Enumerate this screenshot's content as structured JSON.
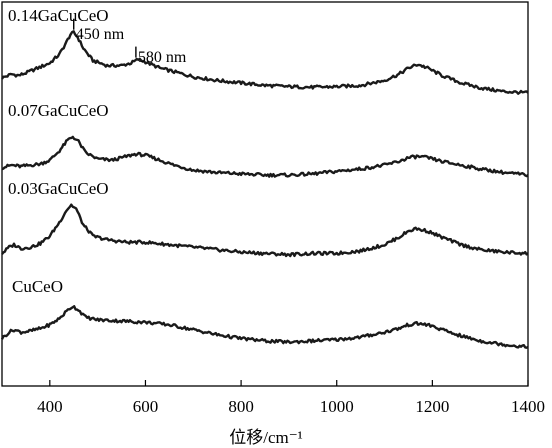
{
  "chart_data": {
    "type": "line",
    "title": "",
    "xlabel": "位移/cm⁻¹",
    "ylabel": "",
    "xlim": [
      300,
      1400
    ],
    "x_ticks": [
      400,
      600,
      800,
      1000,
      1200,
      1400
    ],
    "y_ticks_shown": false,
    "grid": false,
    "legend": "none (labels placed above each trace)",
    "colors": {
      "line": "#1a1a1a",
      "axis": "#000000"
    },
    "annotations": [
      {
        "text": "450 nm",
        "x": 450,
        "series": "0.14GaCuCeO"
      },
      {
        "text": "580 nm",
        "x": 580,
        "series": "0.14GaCuCeO"
      }
    ],
    "series": [
      {
        "name": "0.14GaCuCeO",
        "offset": 3,
        "points": [
          [
            300,
            0.42
          ],
          [
            320,
            0.48
          ],
          [
            335,
            0.46
          ],
          [
            350,
            0.5
          ],
          [
            375,
            0.58
          ],
          [
            400,
            0.66
          ],
          [
            420,
            0.8
          ],
          [
            435,
            1.0
          ],
          [
            443,
            1.12
          ],
          [
            450,
            1.15
          ],
          [
            458,
            1.08
          ],
          [
            470,
            0.9
          ],
          [
            490,
            0.7
          ],
          [
            520,
            0.62
          ],
          [
            550,
            0.62
          ],
          [
            570,
            0.66
          ],
          [
            585,
            0.72
          ],
          [
            600,
            0.68
          ],
          [
            630,
            0.58
          ],
          [
            660,
            0.52
          ],
          [
            700,
            0.44
          ],
          [
            750,
            0.38
          ],
          [
            800,
            0.34
          ],
          [
            850,
            0.3
          ],
          [
            900,
            0.28
          ],
          [
            950,
            0.27
          ],
          [
            1000,
            0.28
          ],
          [
            1050,
            0.3
          ],
          [
            1100,
            0.38
          ],
          [
            1130,
            0.48
          ],
          [
            1150,
            0.58
          ],
          [
            1170,
            0.64
          ],
          [
            1190,
            0.58
          ],
          [
            1220,
            0.46
          ],
          [
            1260,
            0.34
          ],
          [
            1300,
            0.26
          ],
          [
            1350,
            0.2
          ],
          [
            1400,
            0.18
          ]
        ]
      },
      {
        "name": "0.07GaCuCeO",
        "offset": 2,
        "points": [
          [
            300,
            0.28
          ],
          [
            320,
            0.32
          ],
          [
            340,
            0.3
          ],
          [
            360,
            0.32
          ],
          [
            380,
            0.34
          ],
          [
            400,
            0.4
          ],
          [
            420,
            0.55
          ],
          [
            437,
            0.72
          ],
          [
            448,
            0.78
          ],
          [
            460,
            0.7
          ],
          [
            475,
            0.52
          ],
          [
            500,
            0.42
          ],
          [
            530,
            0.4
          ],
          [
            560,
            0.46
          ],
          [
            580,
            0.5
          ],
          [
            600,
            0.48
          ],
          [
            630,
            0.4
          ],
          [
            660,
            0.32
          ],
          [
            700,
            0.24
          ],
          [
            750,
            0.2
          ],
          [
            800,
            0.18
          ],
          [
            850,
            0.16
          ],
          [
            900,
            0.16
          ],
          [
            950,
            0.18
          ],
          [
            1000,
            0.22
          ],
          [
            1050,
            0.26
          ],
          [
            1100,
            0.32
          ],
          [
            1130,
            0.38
          ],
          [
            1150,
            0.44
          ],
          [
            1170,
            0.46
          ],
          [
            1190,
            0.44
          ],
          [
            1220,
            0.38
          ],
          [
            1260,
            0.32
          ],
          [
            1300,
            0.26
          ],
          [
            1350,
            0.2
          ],
          [
            1400,
            0.16
          ]
        ]
      },
      {
        "name": "0.03GaCuCeO",
        "offset": 1,
        "points": [
          [
            300,
            0.3
          ],
          [
            315,
            0.4
          ],
          [
            325,
            0.44
          ],
          [
            340,
            0.38
          ],
          [
            360,
            0.4
          ],
          [
            380,
            0.46
          ],
          [
            400,
            0.58
          ],
          [
            420,
            0.8
          ],
          [
            435,
            1.0
          ],
          [
            445,
            1.08
          ],
          [
            455,
            1.02
          ],
          [
            470,
            0.76
          ],
          [
            490,
            0.58
          ],
          [
            520,
            0.52
          ],
          [
            560,
            0.48
          ],
          [
            600,
            0.48
          ],
          [
            650,
            0.44
          ],
          [
            700,
            0.4
          ],
          [
            750,
            0.36
          ],
          [
            800,
            0.32
          ],
          [
            850,
            0.3
          ],
          [
            900,
            0.28
          ],
          [
            950,
            0.3
          ],
          [
            1000,
            0.3
          ],
          [
            1050,
            0.34
          ],
          [
            1100,
            0.44
          ],
          [
            1130,
            0.56
          ],
          [
            1150,
            0.66
          ],
          [
            1165,
            0.7
          ],
          [
            1190,
            0.66
          ],
          [
            1220,
            0.56
          ],
          [
            1260,
            0.44
          ],
          [
            1300,
            0.36
          ],
          [
            1350,
            0.32
          ],
          [
            1400,
            0.3
          ]
        ]
      },
      {
        "name": "CuCeO",
        "offset": 0,
        "points": [
          [
            300,
            0.3
          ],
          [
            315,
            0.4
          ],
          [
            325,
            0.44
          ],
          [
            340,
            0.4
          ],
          [
            360,
            0.42
          ],
          [
            380,
            0.46
          ],
          [
            400,
            0.52
          ],
          [
            420,
            0.62
          ],
          [
            438,
            0.76
          ],
          [
            448,
            0.82
          ],
          [
            460,
            0.76
          ],
          [
            475,
            0.64
          ],
          [
            500,
            0.6
          ],
          [
            550,
            0.58
          ],
          [
            600,
            0.56
          ],
          [
            650,
            0.52
          ],
          [
            700,
            0.44
          ],
          [
            750,
            0.36
          ],
          [
            800,
            0.3
          ],
          [
            850,
            0.26
          ],
          [
            900,
            0.24
          ],
          [
            950,
            0.26
          ],
          [
            1000,
            0.28
          ],
          [
            1050,
            0.32
          ],
          [
            1100,
            0.4
          ],
          [
            1130,
            0.46
          ],
          [
            1150,
            0.52
          ],
          [
            1170,
            0.54
          ],
          [
            1190,
            0.52
          ],
          [
            1220,
            0.44
          ],
          [
            1260,
            0.34
          ],
          [
            1300,
            0.26
          ],
          [
            1350,
            0.2
          ],
          [
            1400,
            0.16
          ]
        ]
      }
    ]
  }
}
